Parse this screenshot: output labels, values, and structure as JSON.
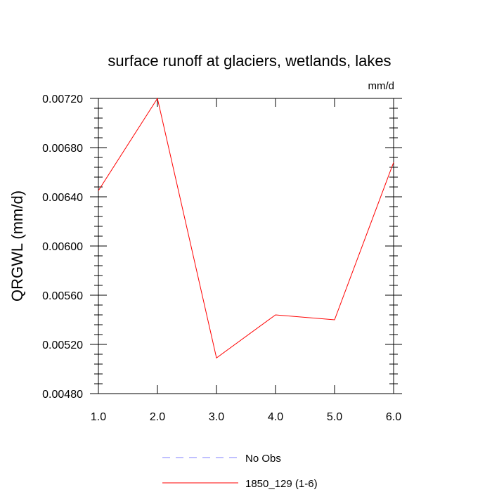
{
  "chart_data": {
    "type": "line",
    "title": "surface runoff at glaciers, wetlands, lakes",
    "units": "mm/d",
    "xlabel": "",
    "ylabel": "QRGWL  (mm/d)",
    "xlim": [
      1.0,
      6.0
    ],
    "ylim": [
      0.0048,
      0.0072
    ],
    "xticks": [
      "1.0",
      "2.0",
      "3.0",
      "4.0",
      "5.0",
      "6.0"
    ],
    "yticks": [
      "0.00480",
      "0.00520",
      "0.00560",
      "0.00600",
      "0.00640",
      "0.00680",
      "0.00720"
    ],
    "grid": false,
    "legend_position": "bottom",
    "series": [
      {
        "name": "No Obs",
        "color": "#8080ff",
        "style": "dashed",
        "x": [],
        "y": []
      },
      {
        "name": "1850_129 (1-6)",
        "color": "#ff0000",
        "style": "solid",
        "x": [
          1,
          2,
          3,
          4,
          5,
          6
        ],
        "y": [
          0.00645,
          0.0072,
          0.00509,
          0.00544,
          0.0054,
          0.00668
        ]
      }
    ]
  }
}
